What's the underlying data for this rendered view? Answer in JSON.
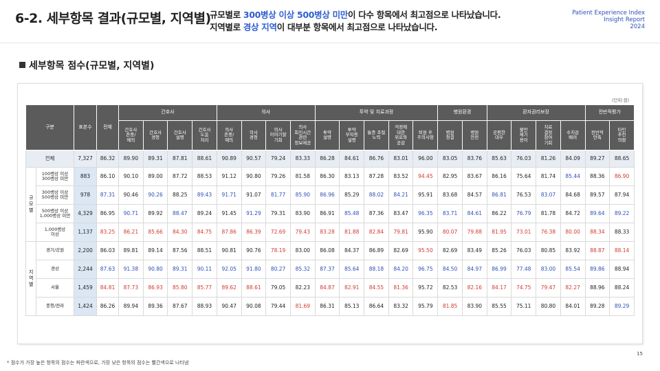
{
  "header": {
    "title": "6-2. 세부항목 결과(규모별, 지역별)",
    "summary": [
      [
        {
          "text": "규모별로 "
        },
        {
          "text": "300병상 이상 500병상 미만",
          "color": "#2f5fd0"
        },
        {
          "text": "이 다수 항목에서 최고점으로 나타났습니다."
        }
      ],
      [
        {
          "text": "지역별로 "
        },
        {
          "text": "경상 지역",
          "color": "#2f5fd0"
        },
        {
          "text": "이 대부분 항목에서 최고점으로 나타났습니다."
        }
      ]
    ],
    "report": [
      "Patient Experience Index",
      "Insight Report",
      "2024"
    ]
  },
  "section_title": "세부항목 점수(규모별, 지역별)",
  "unit": "(단위:점)",
  "table": {
    "columns": [
      "구분",
      "표본수",
      "전체"
    ],
    "groups": [
      {
        "label": "간호사",
        "items": [
          "간호사\n존중/\n예의",
          "간호사\n경청",
          "간호사\n설명",
          "간호사\n도움\n처리"
        ]
      },
      {
        "label": "의사",
        "items": [
          "의사\n존중/\n예의",
          "의사\n경청",
          "의사\n이야기할\n기회",
          "의사\n회진시간\n관련\n정보제공"
        ]
      },
      {
        "label": "투약 및 치료과정",
        "items": [
          "투약\n설명",
          "투약\n부작용\n설명",
          "통증 조절\n노력",
          "걱정에\n대한\n위로와\n공감",
          "퇴원 후\n주의사항"
        ]
      },
      {
        "label": "병원환경",
        "items": [
          "병원\n청결",
          "병원\n안전"
        ]
      },
      {
        "label": "환자권리보장",
        "items": [
          "공평한\n대우",
          "불만\n제기\n용이",
          "치료\n결정\n참여\n기회",
          "수치감\n배려"
        ]
      },
      {
        "label": "전반적평가",
        "items": [
          "전반적\n만족",
          "타인\n추천\n의향"
        ]
      }
    ],
    "total_row": {
      "label": "전체",
      "cells": [
        "7,327",
        "86.32",
        "89.90",
        "89.31",
        "87.81",
        "88.61",
        "90.89",
        "90.57",
        "79.24",
        "83.33",
        "86.28",
        "84.61",
        "86.76",
        "83.01",
        "96.00",
        "83.05",
        "83.76",
        "85.63",
        "76.03",
        "81.26",
        "84.09",
        "89.27",
        "88.65"
      ]
    },
    "sections": [
      {
        "label": "규모별",
        "rows": [
          {
            "label": "100병상 이상\n300병상 미만",
            "cells": [
              "883",
              "86.10",
              "90.10",
              "89.00",
              "87.72",
              "88.53",
              "91.12",
              "90.80",
              "79.26",
              "81.58",
              "86.30",
              "83.13",
              "87.28",
              "83.52",
              {
                "text": "94.45",
                "color": "#d23a2f"
              },
              "82.95",
              "83.67",
              "86.16",
              "75.64",
              "81.74",
              {
                "text": "85.44",
                "color": "#2f4fb8"
              },
              "88.36",
              {
                "text": "86.90",
                "color": "#d23a2f"
              }
            ]
          },
          {
            "label": "300병상 이상\n500병상 미만",
            "cells": [
              "978",
              {
                "text": "87.31",
                "color": "#2f4fb8"
              },
              "90.46",
              {
                "text": "90.26",
                "color": "#2f4fb8"
              },
              "88.25",
              {
                "text": "89.43",
                "color": "#2f4fb8"
              },
              {
                "text": "91.71",
                "color": "#2f4fb8"
              },
              "91.07",
              {
                "text": "81.77",
                "color": "#2f4fb8"
              },
              {
                "text": "85.90",
                "color": "#2f4fb8"
              },
              {
                "text": "86.96",
                "color": "#2f4fb8"
              },
              "85.29",
              {
                "text": "88.02",
                "color": "#2f4fb8"
              },
              {
                "text": "84.21",
                "color": "#2f4fb8"
              },
              "95.91",
              "83.68",
              "84.57",
              {
                "text": "86.81",
                "color": "#2f4fb8"
              },
              "76.53",
              {
                "text": "83.07",
                "color": "#2f4fb8"
              },
              "84.68",
              "89.57",
              "87.94"
            ]
          },
          {
            "label": "500병상 이상\n1,000병상 미만",
            "cells": [
              "4,329",
              "86.95",
              {
                "text": "90.71",
                "color": "#2f4fb8"
              },
              "89.92",
              {
                "text": "88.47",
                "color": "#2f4fb8"
              },
              "89.24",
              "91.45",
              {
                "text": "91.29",
                "color": "#2f4fb8"
              },
              "79.31",
              "83.90",
              "86.91",
              {
                "text": "85.48",
                "color": "#2f4fb8"
              },
              "87.36",
              "83.47",
              {
                "text": "96.35",
                "color": "#2f4fb8"
              },
              {
                "text": "83.71",
                "color": "#2f4fb8"
              },
              {
                "text": "84.61",
                "color": "#2f4fb8"
              },
              "86.22",
              {
                "text": "76.79",
                "color": "#2f4fb8"
              },
              "81.78",
              "84.72",
              {
                "text": "89.64",
                "color": "#2f4fb8"
              },
              {
                "text": "89.22",
                "color": "#2f4fb8"
              }
            ]
          },
          {
            "label": "1,000병상\n이상",
            "cells": [
              "1,137",
              {
                "text": "83.25",
                "color": "#d23a2f"
              },
              {
                "text": "86.21",
                "color": "#d23a2f"
              },
              {
                "text": "85.66",
                "color": "#d23a2f"
              },
              {
                "text": "84.30",
                "color": "#d23a2f"
              },
              {
                "text": "84.75",
                "color": "#d23a2f"
              },
              {
                "text": "87.86",
                "color": "#d23a2f"
              },
              {
                "text": "86.39",
                "color": "#d23a2f"
              },
              {
                "text": "72.69",
                "color": "#d23a2f"
              },
              {
                "text": "79.43",
                "color": "#d23a2f"
              },
              {
                "text": "83.28",
                "color": "#d23a2f"
              },
              {
                "text": "81.88",
                "color": "#d23a2f"
              },
              {
                "text": "82.84",
                "color": "#d23a2f"
              },
              {
                "text": "79.81",
                "color": "#d23a2f"
              },
              "95.90",
              {
                "text": "80.07",
                "color": "#d23a2f"
              },
              {
                "text": "79.88",
                "color": "#d23a2f"
              },
              {
                "text": "81.95",
                "color": "#d23a2f"
              },
              {
                "text": "73.01",
                "color": "#d23a2f"
              },
              {
                "text": "76.38",
                "color": "#d23a2f"
              },
              {
                "text": "80.00",
                "color": "#d23a2f"
              },
              {
                "text": "88.34",
                "color": "#d23a2f"
              },
              "88.33"
            ]
          }
        ]
      },
      {
        "label": "지역별",
        "rows": [
          {
            "label": "경기/강원",
            "cells": [
              "2,200",
              "86.03",
              "89.81",
              "89.14",
              "87.56",
              "88.51",
              "90.81",
              "90.76",
              {
                "text": "78.19",
                "color": "#d23a2f"
              },
              "83.00",
              "86.08",
              "84.37",
              "86.89",
              "82.69",
              {
                "text": "95.50",
                "color": "#d23a2f"
              },
              "82.69",
              "83.49",
              "85.26",
              "76.03",
              "80.85",
              "83.92",
              {
                "text": "88.87",
                "color": "#d23a2f"
              },
              {
                "text": "88.14",
                "color": "#d23a2f"
              }
            ]
          },
          {
            "label": "경상",
            "cells": [
              "2,244",
              {
                "text": "87.63",
                "color": "#2f4fb8"
              },
              {
                "text": "91.38",
                "color": "#2f4fb8"
              },
              {
                "text": "90.80",
                "color": "#2f4fb8"
              },
              {
                "text": "89.31",
                "color": "#2f4fb8"
              },
              {
                "text": "90.11",
                "color": "#2f4fb8"
              },
              {
                "text": "92.05",
                "color": "#2f4fb8"
              },
              {
                "text": "91.80",
                "color": "#2f4fb8"
              },
              {
                "text": "80.27",
                "color": "#2f4fb8"
              },
              {
                "text": "85.32",
                "color": "#2f4fb8"
              },
              {
                "text": "87.37",
                "color": "#2f4fb8"
              },
              {
                "text": "85.64",
                "color": "#2f4fb8"
              },
              {
                "text": "88.18",
                "color": "#2f4fb8"
              },
              {
                "text": "84.20",
                "color": "#2f4fb8"
              },
              {
                "text": "96.75",
                "color": "#2f4fb8"
              },
              {
                "text": "84.50",
                "color": "#2f4fb8"
              },
              {
                "text": "84.97",
                "color": "#2f4fb8"
              },
              {
                "text": "86.99",
                "color": "#2f4fb8"
              },
              {
                "text": "77.48",
                "color": "#2f4fb8"
              },
              {
                "text": "83.00",
                "color": "#2f4fb8"
              },
              {
                "text": "85.54",
                "color": "#2f4fb8"
              },
              {
                "text": "89.86",
                "color": "#2f4fb8"
              },
              "88.94"
            ]
          },
          {
            "label": "서울",
            "cells": [
              "1,459",
              {
                "text": "84.81",
                "color": "#d23a2f"
              },
              {
                "text": "87.73",
                "color": "#d23a2f"
              },
              {
                "text": "86.93",
                "color": "#d23a2f"
              },
              {
                "text": "85.80",
                "color": "#d23a2f"
              },
              {
                "text": "85.77",
                "color": "#d23a2f"
              },
              {
                "text": "89.62",
                "color": "#d23a2f"
              },
              {
                "text": "88.61",
                "color": "#d23a2f"
              },
              "79.05",
              "82.23",
              {
                "text": "84.87",
                "color": "#d23a2f"
              },
              {
                "text": "82.91",
                "color": "#d23a2f"
              },
              {
                "text": "84.55",
                "color": "#d23a2f"
              },
              {
                "text": "81.36",
                "color": "#d23a2f"
              },
              "95.72",
              "82.53",
              {
                "text": "82.16",
                "color": "#d23a2f"
              },
              {
                "text": "84.17",
                "color": "#d23a2f"
              },
              {
                "text": "74.75",
                "color": "#d23a2f"
              },
              {
                "text": "79.47",
                "color": "#d23a2f"
              },
              {
                "text": "82.27",
                "color": "#d23a2f"
              },
              "88.96",
              "88.24"
            ]
          },
          {
            "label": "충청/전라",
            "cells": [
              "1,424",
              "86.26",
              "89.94",
              "89.36",
              "87.67",
              "88.93",
              "90.47",
              "90.08",
              "79.44",
              {
                "text": "81.69",
                "color": "#d23a2f"
              },
              "86.31",
              "85.13",
              "86.64",
              "83.32",
              "95.79",
              {
                "text": "81.85",
                "color": "#d23a2f"
              },
              "83.90",
              "85.55",
              "75.11",
              "80.80",
              "84.01",
              "89.28",
              {
                "text": "89.29",
                "color": "#2f4fb8"
              }
            ]
          }
        ]
      }
    ]
  },
  "footnote": "* 점수가 가장 높은 항목의 점수는 파란색으로, 가장 낮은 항목의 점수는 빨간색으로 나타냄",
  "page_number": "15"
}
